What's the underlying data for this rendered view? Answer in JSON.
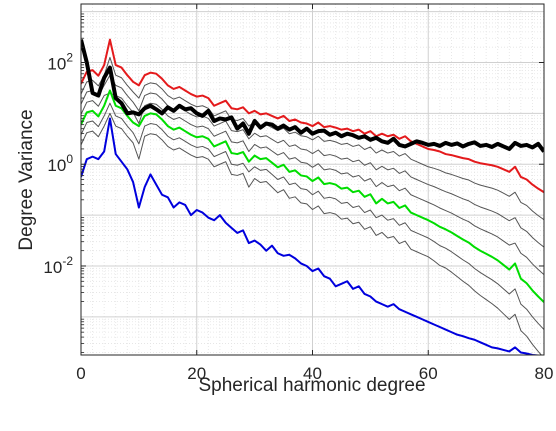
{
  "chart_data": {
    "type": "line",
    "title": "",
    "xlabel": "Spherical harmonic degree",
    "ylabel": "Degree Variance",
    "xlim": [
      0,
      80
    ],
    "ylim_log10": [
      -3.75,
      3.15
    ],
    "yscale": "log",
    "grid": "major and minor, dotted",
    "x_ticks": [
      0,
      20,
      40,
      60,
      80
    ],
    "x_tick_labels": [
      "0",
      "20",
      "40",
      "60",
      "80"
    ],
    "y_ticks_log10": [
      -2,
      0,
      2
    ],
    "y_tick_labels": [
      {
        "base": "10",
        "exp": "-2"
      },
      {
        "base": "10",
        "exp": "0"
      },
      {
        "base": "10",
        "exp": "2"
      }
    ],
    "legend": "none",
    "degrees_start": 0,
    "series": [
      {
        "color": "#e41a1c",
        "width": 2,
        "log10_values": [
          1.58,
          1.82,
          1.85,
          1.74,
          1.95,
          2.45,
          1.95,
          1.9,
          1.75,
          1.62,
          1.55,
          1.75,
          1.8,
          1.78,
          1.68,
          1.55,
          1.48,
          1.52,
          1.45,
          1.38,
          1.33,
          1.35,
          1.3,
          1.15,
          1.2,
          1.25,
          1.1,
          1.08,
          1.12,
          1.0,
          1.05,
          0.98,
          1.0,
          0.95,
          0.9,
          0.95,
          0.85,
          0.88,
          0.82,
          0.8,
          0.75,
          0.82,
          0.73,
          0.75,
          0.72,
          0.68,
          0.7,
          0.65,
          0.68,
          0.6,
          0.65,
          0.55,
          0.6,
          0.55,
          0.58,
          0.5,
          0.55,
          0.45,
          0.4,
          0.35,
          0.3,
          0.28,
          0.25,
          0.2,
          0.18,
          0.15,
          0.12,
          0.1,
          0.05,
          0.02,
          0.0,
          -0.02,
          -0.05,
          -0.1,
          -0.15,
          -0.05,
          -0.25,
          -0.3,
          -0.4,
          -0.48,
          -0.55
        ]
      },
      {
        "color": "#555555",
        "width": 1,
        "log10_values": [
          1.38,
          1.62,
          1.65,
          1.54,
          1.75,
          2.1,
          1.75,
          1.7,
          1.55,
          1.42,
          1.3,
          1.55,
          1.6,
          1.58,
          1.48,
          1.35,
          1.28,
          1.32,
          1.25,
          1.18,
          1.13,
          1.15,
          1.1,
          0.95,
          1.0,
          1.05,
          0.88,
          0.86,
          0.9,
          0.75,
          0.83,
          0.76,
          0.78,
          0.72,
          0.66,
          0.71,
          0.6,
          0.63,
          0.56,
          0.54,
          0.48,
          0.55,
          0.45,
          0.47,
          0.44,
          0.39,
          0.41,
          0.35,
          0.38,
          0.29,
          0.34,
          0.22,
          0.28,
          0.22,
          0.25,
          0.16,
          0.21,
          0.1,
          0.05,
          0.0,
          -0.05,
          -0.08,
          -0.12,
          -0.17,
          -0.2,
          -0.24,
          -0.28,
          -0.31,
          -0.37,
          -0.41,
          -0.44,
          -0.47,
          -0.51,
          -0.57,
          -0.63,
          -0.55,
          -0.75,
          -0.81,
          -0.92,
          -1.01,
          -1.09
        ]
      },
      {
        "color": "#555555",
        "width": 1,
        "log10_values": [
          1.18,
          1.42,
          1.45,
          1.34,
          1.55,
          1.75,
          1.55,
          1.5,
          1.35,
          1.22,
          1.05,
          1.35,
          1.4,
          1.38,
          1.28,
          1.15,
          1.08,
          1.12,
          1.05,
          0.98,
          0.93,
          0.95,
          0.9,
          0.75,
          0.8,
          0.85,
          0.66,
          0.64,
          0.68,
          0.5,
          0.61,
          0.54,
          0.56,
          0.49,
          0.42,
          0.47,
          0.35,
          0.38,
          0.3,
          0.28,
          0.21,
          0.28,
          0.17,
          0.19,
          0.16,
          0.1,
          0.12,
          0.05,
          0.08,
          -0.02,
          0.03,
          -0.11,
          -0.04,
          -0.11,
          -0.08,
          -0.18,
          -0.13,
          -0.25,
          -0.3,
          -0.35,
          -0.4,
          -0.44,
          -0.49,
          -0.54,
          -0.58,
          -0.63,
          -0.68,
          -0.72,
          -0.79,
          -0.84,
          -0.88,
          -0.92,
          -0.97,
          -1.04,
          -1.11,
          -1.05,
          -1.25,
          -1.32,
          -1.44,
          -1.54,
          -1.63
        ]
      },
      {
        "color": "#555555",
        "width": 1,
        "log10_values": [
          0.98,
          1.22,
          1.25,
          1.14,
          1.35,
          1.4,
          1.35,
          1.3,
          1.15,
          1.02,
          0.8,
          1.15,
          1.2,
          1.18,
          1.08,
          0.95,
          0.88,
          0.92,
          0.85,
          0.78,
          0.73,
          0.75,
          0.7,
          0.55,
          0.6,
          0.65,
          0.44,
          0.42,
          0.46,
          0.25,
          0.39,
          0.32,
          0.34,
          0.26,
          0.18,
          0.23,
          0.1,
          0.13,
          0.04,
          0.02,
          -0.06,
          0.01,
          -0.11,
          -0.09,
          -0.12,
          -0.19,
          -0.17,
          -0.25,
          -0.22,
          -0.33,
          -0.28,
          -0.44,
          -0.36,
          -0.44,
          -0.41,
          -0.52,
          -0.47,
          -0.6,
          -0.65,
          -0.7,
          -0.75,
          -0.8,
          -0.86,
          -0.91,
          -0.96,
          -1.02,
          -1.08,
          -1.13,
          -1.21,
          -1.27,
          -1.32,
          -1.37,
          -1.43,
          -1.51,
          -1.59,
          -1.55,
          -1.75,
          -1.83,
          -1.96,
          -2.07,
          -2.17
        ]
      },
      {
        "color": "#00dd00",
        "width": 2,
        "log10_values": [
          0.78,
          1.02,
          1.05,
          0.94,
          1.15,
          1.45,
          1.15,
          1.1,
          0.95,
          0.82,
          0.75,
          0.95,
          1.0,
          0.98,
          0.88,
          0.75,
          0.68,
          0.72,
          0.65,
          0.58,
          0.53,
          0.55,
          0.5,
          0.35,
          0.4,
          0.45,
          0.22,
          0.2,
          0.24,
          0.05,
          0.17,
          0.1,
          0.12,
          0.03,
          -0.06,
          -0.01,
          -0.15,
          -0.12,
          -0.22,
          -0.24,
          -0.33,
          -0.26,
          -0.39,
          -0.37,
          -0.4,
          -0.48,
          -0.46,
          -0.55,
          -0.52,
          -0.64,
          -0.59,
          -0.77,
          -0.68,
          -0.77,
          -0.74,
          -0.86,
          -0.81,
          -0.95,
          -1.0,
          -1.05,
          -1.1,
          -1.16,
          -1.23,
          -1.28,
          -1.34,
          -1.41,
          -1.48,
          -1.54,
          -1.63,
          -1.7,
          -1.76,
          -1.82,
          -1.89,
          -1.98,
          -2.07,
          -1.95,
          -2.25,
          -2.34,
          -2.48,
          -2.6,
          -2.71
        ]
      },
      {
        "color": "#555555",
        "width": 1,
        "log10_values": [
          0.58,
          0.82,
          0.85,
          0.74,
          0.95,
          1.2,
          0.95,
          0.9,
          0.75,
          0.62,
          0.4,
          0.75,
          0.8,
          0.78,
          0.68,
          0.55,
          0.48,
          0.52,
          0.45,
          0.38,
          0.33,
          0.35,
          0.3,
          0.15,
          0.2,
          0.25,
          0.0,
          -0.02,
          0.02,
          -0.15,
          -0.05,
          -0.12,
          -0.1,
          -0.2,
          -0.3,
          -0.25,
          -0.4,
          -0.37,
          -0.48,
          -0.5,
          -0.6,
          -0.53,
          -0.67,
          -0.65,
          -0.68,
          -0.77,
          -0.75,
          -0.85,
          -0.82,
          -0.95,
          -0.9,
          -1.05,
          -1.0,
          -1.1,
          -1.07,
          -1.2,
          -1.15,
          -1.3,
          -1.35,
          -1.4,
          -1.45,
          -1.52,
          -1.6,
          -1.65,
          -1.72,
          -1.8,
          -1.88,
          -1.95,
          -2.05,
          -2.13,
          -2.2,
          -2.27,
          -2.35,
          -2.45,
          -2.55,
          -2.45,
          -2.75,
          -2.85,
          -3.0,
          -3.13,
          -3.25
        ]
      },
      {
        "color": "#555555",
        "width": 1,
        "log10_values": [
          0.38,
          0.62,
          0.65,
          0.54,
          0.75,
          1.0,
          0.75,
          0.7,
          0.55,
          0.42,
          0.1,
          0.55,
          0.6,
          0.58,
          0.48,
          0.35,
          0.28,
          0.32,
          0.25,
          0.18,
          0.13,
          0.15,
          0.1,
          -0.05,
          0.0,
          0.05,
          -0.2,
          -0.22,
          -0.18,
          -0.45,
          -0.28,
          -0.36,
          -0.34,
          -0.45,
          -0.56,
          -0.5,
          -0.67,
          -0.64,
          -0.76,
          -0.78,
          -0.89,
          -0.82,
          -0.97,
          -0.95,
          -0.98,
          -1.08,
          -1.06,
          -1.17,
          -1.14,
          -1.28,
          -1.23,
          -1.4,
          -1.34,
          -1.45,
          -1.42,
          -1.56,
          -1.51,
          -1.67,
          -1.72,
          -1.77,
          -1.82,
          -1.9,
          -1.99,
          -2.04,
          -2.12,
          -2.21,
          -2.3,
          -2.38,
          -2.49,
          -2.58,
          -2.66,
          -2.74,
          -2.83,
          -2.94,
          -3.05,
          -2.95,
          -3.27,
          -3.38,
          -3.54,
          -3.68,
          -3.81
        ]
      },
      {
        "color": "#0000dd",
        "width": 2,
        "log10_values": [
          -0.25,
          0.1,
          0.15,
          0.1,
          0.25,
          0.9,
          0.2,
          0.05,
          -0.1,
          -0.35,
          -0.85,
          -0.45,
          -0.2,
          -0.4,
          -0.6,
          -0.65,
          -0.85,
          -0.75,
          -0.8,
          -1.0,
          -0.9,
          -0.95,
          -1.05,
          -1.1,
          -1.0,
          -1.15,
          -1.25,
          -1.35,
          -1.3,
          -1.55,
          -1.5,
          -1.58,
          -1.7,
          -1.6,
          -1.75,
          -1.8,
          -1.78,
          -1.85,
          -1.95,
          -2.0,
          -2.1,
          -2.05,
          -2.2,
          -2.25,
          -2.4,
          -2.35,
          -2.3,
          -2.45,
          -2.4,
          -2.55,
          -2.6,
          -2.7,
          -2.75,
          -2.8,
          -2.75,
          -2.85,
          -2.9,
          -2.95,
          -3.0,
          -3.05,
          -3.1,
          -3.15,
          -3.2,
          -3.25,
          -3.3,
          -3.35,
          -3.38,
          -3.42,
          -3.45,
          -3.5,
          -3.55,
          -3.6,
          -3.62,
          -3.65,
          -3.68,
          -3.6,
          -3.7,
          -3.72,
          -3.75,
          -3.76,
          -3.78
        ]
      },
      {
        "color": "#000000",
        "width": 4,
        "log10_values": [
          2.45,
          2.0,
          1.4,
          1.35,
          1.7,
          1.9,
          1.3,
          1.2,
          1.0,
          1.02,
          0.98,
          1.1,
          1.15,
          1.08,
          1.0,
          1.12,
          1.05,
          1.15,
          1.08,
          1.1,
          1.0,
          0.95,
          1.05,
          0.85,
          0.9,
          0.88,
          0.92,
          0.7,
          0.8,
          0.6,
          0.85,
          0.72,
          0.8,
          0.78,
          0.7,
          0.76,
          0.68,
          0.73,
          0.62,
          0.7,
          0.6,
          0.65,
          0.66,
          0.58,
          0.62,
          0.55,
          0.6,
          0.57,
          0.52,
          0.55,
          0.48,
          0.52,
          0.45,
          0.42,
          0.5,
          0.38,
          0.35,
          0.4,
          0.45,
          0.42,
          0.38,
          0.4,
          0.36,
          0.42,
          0.38,
          0.41,
          0.35,
          0.4,
          0.43,
          0.36,
          0.38,
          0.34,
          0.4,
          0.35,
          0.3,
          0.42,
          0.36,
          0.38,
          0.33,
          0.4,
          0.25
        ]
      }
    ]
  }
}
